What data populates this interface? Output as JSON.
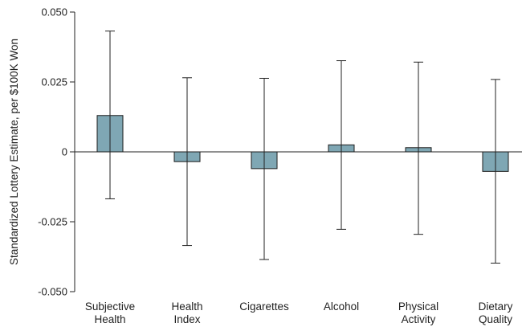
{
  "chart_data": {
    "type": "bar",
    "ylabel": "Standardized Lottery Estimate, per $100K Won",
    "xlabel": "",
    "title": "",
    "ylim": [
      -0.05,
      0.05
    ],
    "yticks": [
      -0.05,
      -0.025,
      0,
      0.025,
      0.05
    ],
    "ytick_labels": [
      "-0.050",
      "-0.025",
      "0",
      "0.025",
      "0.050"
    ],
    "categories": [
      [
        "Subjective",
        "Health"
      ],
      [
        "Health",
        "Index"
      ],
      [
        "Cigarettes"
      ],
      [
        "Alcohol"
      ],
      [
        "Physical",
        "Activity"
      ],
      [
        "Dietary",
        "Quality"
      ]
    ],
    "values": [
      0.013,
      -0.0035,
      -0.006,
      0.0025,
      0.0015,
      -0.007
    ],
    "ci_lower": [
      -0.0168,
      -0.0335,
      -0.0385,
      -0.0277,
      -0.0295,
      -0.0398
    ],
    "ci_upper": [
      0.0432,
      0.0265,
      0.0263,
      0.0326,
      0.0321,
      0.0259
    ],
    "bar_color": "#7fa7b4",
    "bar_edge_color": "#1c1c1c",
    "grid": false
  }
}
